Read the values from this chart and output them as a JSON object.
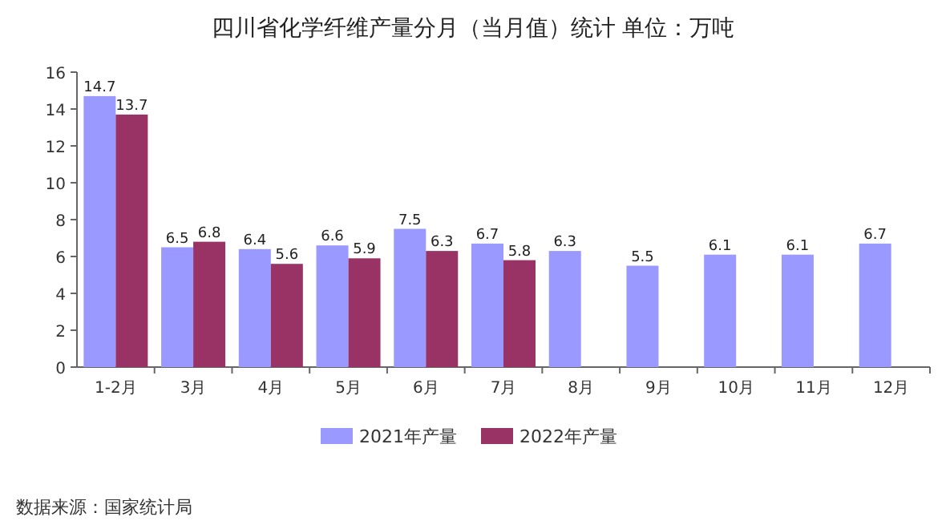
{
  "chart_data": {
    "type": "bar",
    "title": "四川省化学纤维产量分月（当月值）统计 单位：万吨",
    "categories": [
      "1-2月",
      "3月",
      "4月",
      "5月",
      "6月",
      "7月",
      "8月",
      "9月",
      "10月",
      "11月",
      "12月"
    ],
    "series": [
      {
        "name": "2021年产量",
        "color": "#9999ff",
        "values": [
          14.7,
          6.5,
          6.4,
          6.6,
          7.5,
          6.7,
          6.3,
          5.5,
          6.1,
          6.1,
          6.7
        ]
      },
      {
        "name": "2022年产量",
        "color": "#993366",
        "values": [
          13.7,
          6.8,
          5.6,
          5.9,
          6.3,
          5.8,
          null,
          null,
          null,
          null,
          null
        ]
      }
    ],
    "ylim": [
      0,
      16
    ],
    "yticks": [
      0,
      2,
      4,
      6,
      8,
      10,
      12,
      14,
      16
    ],
    "grid": false,
    "legend": "bottom",
    "data_labels": true,
    "annotations": [
      "数据来源：国家统计局"
    ]
  }
}
